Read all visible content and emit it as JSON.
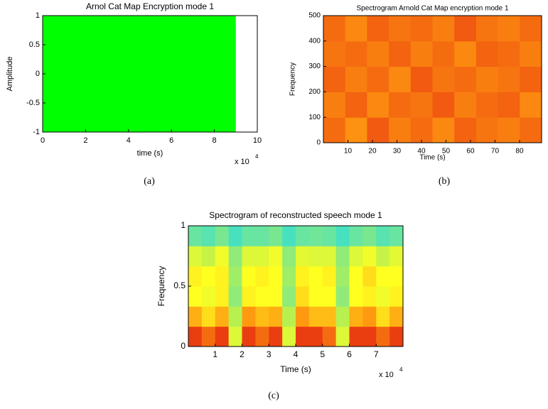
{
  "chart_data": [
    {
      "type": "band",
      "title": "Arnol Cat Map Encryption mode 1",
      "xlabel": "time (s)",
      "ylabel": "Amplitude",
      "x_multiplier": "x 10",
      "x_exponent": "4",
      "caption": "(a)",
      "x": [
        0,
        9
      ],
      "upper": [
        1,
        1
      ],
      "lower": [
        -1,
        -1
      ],
      "color": "#00ff00",
      "xlim": [
        0,
        10
      ],
      "xticks": [
        0,
        2,
        4,
        6,
        8,
        10
      ],
      "ylim": [
        -1,
        1
      ],
      "yticks": [
        -1,
        -0.5,
        0,
        0.5,
        1
      ]
    },
    {
      "type": "heatmap",
      "title": "Spectrogram Arnold Cat Map encryption mode 1",
      "xlabel": "Time (s)",
      "ylabel": "Frequency",
      "caption": "(b)",
      "xlim": [
        0,
        89
      ],
      "xticks": [
        10,
        20,
        30,
        40,
        50,
        60,
        70,
        80
      ],
      "ylim": [
        0,
        500
      ],
      "yticks": [
        0,
        100,
        200,
        300,
        400,
        500
      ],
      "clim": [
        0,
        1
      ],
      "colormap": [
        {
          "value": 0.35,
          "color": "#40e0c8"
        },
        {
          "value": 0.5,
          "color": "#b8f050"
        },
        {
          "value": 0.6,
          "color": "#ffff20"
        },
        {
          "value": 0.75,
          "color": "#ff9a10"
        },
        {
          "value": 0.9,
          "color": "#e01010"
        }
      ],
      "z": [
        [
          0.8,
          0.76,
          0.82,
          0.78,
          0.8,
          0.77,
          0.81,
          0.79,
          0.78,
          0.8
        ],
        [
          0.78,
          0.81,
          0.77,
          0.8,
          0.79,
          0.82,
          0.78,
          0.8,
          0.81,
          0.77
        ],
        [
          0.81,
          0.78,
          0.8,
          0.77,
          0.82,
          0.79,
          0.8,
          0.78,
          0.79,
          0.81
        ],
        [
          0.79,
          0.8,
          0.78,
          0.81,
          0.78,
          0.8,
          0.77,
          0.81,
          0.8,
          0.78
        ],
        [
          0.8,
          0.77,
          0.81,
          0.79,
          0.8,
          0.78,
          0.82,
          0.79,
          0.78,
          0.8
        ]
      ]
    },
    {
      "type": "heatmap",
      "title": "Spectrogram of reconstructed speech mode 1",
      "xlabel": "Time (s)",
      "ylabel": "Frequency",
      "x_multiplier": "x 10",
      "x_exponent": "4",
      "caption": "(c)",
      "xlim": [
        0,
        8
      ],
      "xticks": [
        1,
        2,
        3,
        4,
        5,
        6,
        7
      ],
      "ylim": [
        0,
        1
      ],
      "yticks": [
        0,
        0.5,
        1
      ],
      "clim": [
        0,
        1
      ],
      "colormap": [
        {
          "value": 0.35,
          "color": "#40e0c8"
        },
        {
          "value": 0.5,
          "color": "#b8f050"
        },
        {
          "value": 0.6,
          "color": "#ffff20"
        },
        {
          "value": 0.75,
          "color": "#ff9a10"
        },
        {
          "value": 0.9,
          "color": "#e01010"
        }
      ],
      "z": [
        [
          0.85,
          0.8,
          0.85,
          0.55,
          0.85,
          0.8,
          0.85,
          0.55,
          0.85,
          0.85,
          0.8,
          0.55,
          0.85,
          0.85,
          0.8,
          0.85
        ],
        [
          0.72,
          0.65,
          0.72,
          0.5,
          0.75,
          0.7,
          0.72,
          0.5,
          0.75,
          0.7,
          0.7,
          0.5,
          0.72,
          0.75,
          0.65,
          0.72
        ],
        [
          0.6,
          0.58,
          0.62,
          0.45,
          0.62,
          0.6,
          0.6,
          0.45,
          0.65,
          0.6,
          0.6,
          0.45,
          0.6,
          0.62,
          0.58,
          0.62
        ],
        [
          0.62,
          0.6,
          0.62,
          0.47,
          0.6,
          0.62,
          0.6,
          0.47,
          0.62,
          0.6,
          0.62,
          0.47,
          0.6,
          0.65,
          0.6,
          0.6
        ],
        [
          0.55,
          0.52,
          0.58,
          0.45,
          0.55,
          0.55,
          0.58,
          0.45,
          0.56,
          0.55,
          0.55,
          0.45,
          0.55,
          0.58,
          0.52,
          0.56
        ],
        [
          0.4,
          0.38,
          0.42,
          0.36,
          0.4,
          0.4,
          0.42,
          0.36,
          0.4,
          0.41,
          0.4,
          0.36,
          0.4,
          0.42,
          0.38,
          0.4
        ]
      ]
    }
  ]
}
